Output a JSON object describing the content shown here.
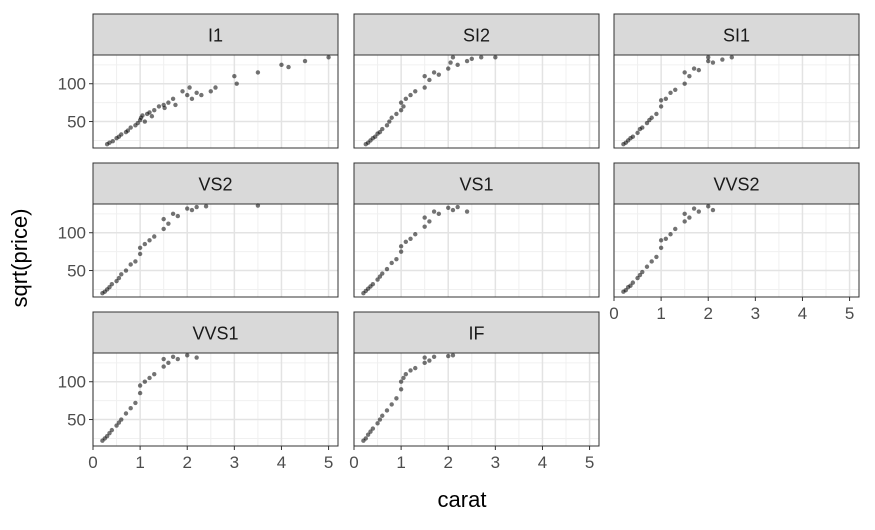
{
  "chart_data": {
    "type": "scatter",
    "xlabel": "carat",
    "ylabel": "sqrt(price)",
    "xlim": [
      0,
      5.2
    ],
    "ylim": [
      15,
      138
    ],
    "x_ticks": [
      0,
      1,
      2,
      3,
      4,
      5
    ],
    "x_tick_labels": [
      "0",
      "1",
      "2",
      "3",
      "4",
      "5"
    ],
    "y_ticks": [
      50,
      100
    ],
    "y_tick_labels": [
      "50",
      "100"
    ],
    "grid": true,
    "point_color": "#000000",
    "strip_fill": "#d9d9d9",
    "facets": [
      {
        "name": "I1",
        "points": [
          [
            0.3,
            20
          ],
          [
            0.35,
            22
          ],
          [
            0.42,
            24
          ],
          [
            0.5,
            28
          ],
          [
            0.55,
            30
          ],
          [
            0.6,
            33
          ],
          [
            0.7,
            36
          ],
          [
            0.74,
            38
          ],
          [
            0.8,
            42
          ],
          [
            0.9,
            45
          ],
          [
            0.95,
            48
          ],
          [
            1.0,
            52
          ],
          [
            1.02,
            55
          ],
          [
            1.05,
            58
          ],
          [
            1.1,
            50
          ],
          [
            1.15,
            60
          ],
          [
            1.2,
            62
          ],
          [
            1.25,
            57
          ],
          [
            1.3,
            65
          ],
          [
            1.4,
            70
          ],
          [
            1.5,
            72
          ],
          [
            1.52,
            68
          ],
          [
            1.6,
            75
          ],
          [
            1.7,
            80
          ],
          [
            1.75,
            72
          ],
          [
            1.9,
            90
          ],
          [
            2.0,
            85
          ],
          [
            2.05,
            95
          ],
          [
            2.1,
            80
          ],
          [
            2.2,
            88
          ],
          [
            2.3,
            85
          ],
          [
            2.5,
            90
          ],
          [
            2.6,
            95
          ],
          [
            3.0,
            110
          ],
          [
            3.05,
            100
          ],
          [
            3.5,
            115
          ],
          [
            4.0,
            125
          ],
          [
            4.15,
            122
          ],
          [
            4.5,
            130
          ],
          [
            5.0,
            135
          ]
        ]
      },
      {
        "name": "SI2",
        "points": [
          [
            0.25,
            20
          ],
          [
            0.3,
            22
          ],
          [
            0.35,
            25
          ],
          [
            0.4,
            28
          ],
          [
            0.45,
            30
          ],
          [
            0.5,
            34
          ],
          [
            0.55,
            36
          ],
          [
            0.6,
            40
          ],
          [
            0.7,
            45
          ],
          [
            0.75,
            50
          ],
          [
            0.8,
            55
          ],
          [
            0.9,
            60
          ],
          [
            1.0,
            65
          ],
          [
            1.0,
            75
          ],
          [
            1.05,
            70
          ],
          [
            1.1,
            80
          ],
          [
            1.2,
            85
          ],
          [
            1.3,
            90
          ],
          [
            1.5,
            95
          ],
          [
            1.5,
            110
          ],
          [
            1.6,
            105
          ],
          [
            1.7,
            115
          ],
          [
            1.8,
            112
          ],
          [
            2.0,
            120
          ],
          [
            2.05,
            128
          ],
          [
            2.1,
            135
          ],
          [
            2.2,
            125
          ],
          [
            2.4,
            130
          ],
          [
            2.5,
            133
          ],
          [
            2.7,
            135
          ],
          [
            3.0,
            135
          ]
        ]
      },
      {
        "name": "SI1",
        "points": [
          [
            0.2,
            20
          ],
          [
            0.25,
            22
          ],
          [
            0.3,
            25
          ],
          [
            0.35,
            28
          ],
          [
            0.4,
            30
          ],
          [
            0.5,
            35
          ],
          [
            0.55,
            40
          ],
          [
            0.6,
            42
          ],
          [
            0.7,
            48
          ],
          [
            0.75,
            52
          ],
          [
            0.8,
            55
          ],
          [
            0.9,
            60
          ],
          [
            1.0,
            70
          ],
          [
            1.0,
            78
          ],
          [
            1.1,
            80
          ],
          [
            1.2,
            88
          ],
          [
            1.3,
            92
          ],
          [
            1.5,
            100
          ],
          [
            1.5,
            115
          ],
          [
            1.6,
            110
          ],
          [
            1.7,
            120
          ],
          [
            1.8,
            118
          ],
          [
            2.0,
            130
          ],
          [
            2.0,
            135
          ],
          [
            2.1,
            128
          ],
          [
            2.3,
            132
          ],
          [
            2.5,
            135
          ]
        ]
      },
      {
        "name": "VS2",
        "points": [
          [
            0.2,
            20
          ],
          [
            0.25,
            22
          ],
          [
            0.3,
            25
          ],
          [
            0.35,
            28
          ],
          [
            0.4,
            32
          ],
          [
            0.5,
            36
          ],
          [
            0.55,
            40
          ],
          [
            0.6,
            45
          ],
          [
            0.7,
            50
          ],
          [
            0.8,
            58
          ],
          [
            0.9,
            62
          ],
          [
            1.0,
            72
          ],
          [
            1.0,
            80
          ],
          [
            1.1,
            85
          ],
          [
            1.2,
            90
          ],
          [
            1.3,
            95
          ],
          [
            1.5,
            105
          ],
          [
            1.5,
            118
          ],
          [
            1.6,
            112
          ],
          [
            1.7,
            125
          ],
          [
            1.8,
            122
          ],
          [
            2.0,
            132
          ],
          [
            2.1,
            130
          ],
          [
            2.2,
            134
          ],
          [
            2.4,
            135
          ],
          [
            3.5,
            136
          ]
        ]
      },
      {
        "name": "VS1",
        "points": [
          [
            0.2,
            20
          ],
          [
            0.25,
            23
          ],
          [
            0.3,
            26
          ],
          [
            0.35,
            29
          ],
          [
            0.4,
            32
          ],
          [
            0.5,
            38
          ],
          [
            0.55,
            42
          ],
          [
            0.6,
            46
          ],
          [
            0.7,
            52
          ],
          [
            0.8,
            60
          ],
          [
            0.9,
            65
          ],
          [
            1.0,
            75
          ],
          [
            1.0,
            82
          ],
          [
            1.1,
            88
          ],
          [
            1.2,
            92
          ],
          [
            1.3,
            98
          ],
          [
            1.5,
            108
          ],
          [
            1.5,
            120
          ],
          [
            1.6,
            115
          ],
          [
            1.7,
            128
          ],
          [
            1.8,
            125
          ],
          [
            2.0,
            133
          ],
          [
            2.1,
            130
          ],
          [
            2.2,
            134
          ],
          [
            2.4,
            128
          ]
        ]
      },
      {
        "name": "VVS2",
        "points": [
          [
            0.2,
            22
          ],
          [
            0.25,
            24
          ],
          [
            0.3,
            28
          ],
          [
            0.35,
            30
          ],
          [
            0.4,
            34
          ],
          [
            0.5,
            40
          ],
          [
            0.55,
            44
          ],
          [
            0.6,
            48
          ],
          [
            0.7,
            55
          ],
          [
            0.8,
            62
          ],
          [
            0.9,
            68
          ],
          [
            1.0,
            80
          ],
          [
            1.0,
            90
          ],
          [
            1.1,
            92
          ],
          [
            1.2,
            98
          ],
          [
            1.3,
            105
          ],
          [
            1.5,
            115
          ],
          [
            1.5,
            125
          ],
          [
            1.6,
            120
          ],
          [
            1.7,
            132
          ],
          [
            1.8,
            128
          ],
          [
            2.0,
            135
          ],
          [
            2.1,
            130
          ]
        ]
      },
      {
        "name": "VVS1",
        "points": [
          [
            0.2,
            22
          ],
          [
            0.25,
            25
          ],
          [
            0.3,
            28
          ],
          [
            0.35,
            32
          ],
          [
            0.4,
            36
          ],
          [
            0.5,
            42
          ],
          [
            0.55,
            46
          ],
          [
            0.6,
            50
          ],
          [
            0.7,
            58
          ],
          [
            0.8,
            65
          ],
          [
            0.9,
            72
          ],
          [
            1.0,
            85
          ],
          [
            1.0,
            95
          ],
          [
            1.1,
            100
          ],
          [
            1.2,
            105
          ],
          [
            1.3,
            110
          ],
          [
            1.5,
            120
          ],
          [
            1.5,
            130
          ],
          [
            1.6,
            125
          ],
          [
            1.7,
            133
          ],
          [
            1.8,
            130
          ],
          [
            2.0,
            135
          ],
          [
            2.2,
            132
          ]
        ]
      },
      {
        "name": "IF",
        "points": [
          [
            0.2,
            22
          ],
          [
            0.25,
            25
          ],
          [
            0.3,
            30
          ],
          [
            0.35,
            34
          ],
          [
            0.4,
            38
          ],
          [
            0.5,
            45
          ],
          [
            0.55,
            50
          ],
          [
            0.6,
            55
          ],
          [
            0.7,
            62
          ],
          [
            0.8,
            70
          ],
          [
            0.9,
            78
          ],
          [
            1.0,
            90
          ],
          [
            1.0,
            100
          ],
          [
            1.05,
            105
          ],
          [
            1.1,
            110
          ],
          [
            1.2,
            115
          ],
          [
            1.3,
            118
          ],
          [
            1.5,
            125
          ],
          [
            1.5,
            132
          ],
          [
            1.6,
            128
          ],
          [
            1.7,
            133
          ],
          [
            2.0,
            134
          ],
          [
            2.1,
            135
          ]
        ]
      }
    ]
  }
}
